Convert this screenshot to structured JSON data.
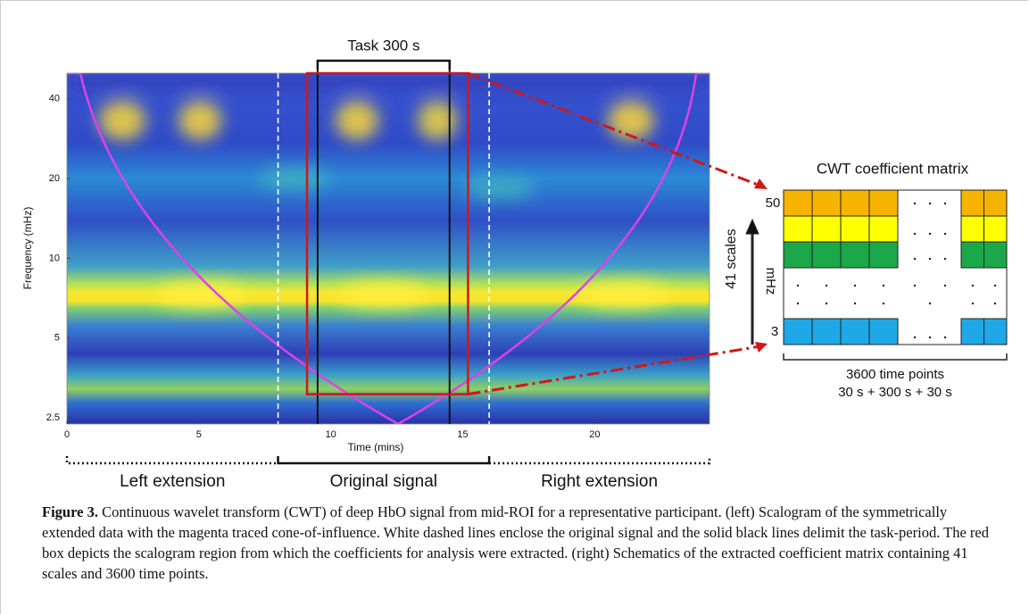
{
  "figure": {
    "scalogram": {
      "x_label": "Time (mins)",
      "y_label": "Frequency (mHz)",
      "xlim": [
        0,
        24.35
      ],
      "ylim": [
        2.37,
        50
      ],
      "y_scale": "log",
      "xticks": [
        0,
        5,
        10,
        15,
        20
      ],
      "yticks": [
        2.5,
        5,
        10,
        20,
        40
      ],
      "original_signal": [
        8,
        16
      ],
      "task": [
        9.5,
        14.5
      ],
      "task_label": "Task 300 s",
      "extracted_region": {
        "x": [
          9.1,
          15.2
        ],
        "y": [
          3.07,
          50
        ]
      },
      "segments": [
        "Left extension",
        "Original signal",
        "Right extension"
      ]
    },
    "matrix": {
      "title": "CWT coefficient matrix",
      "top_label": 50,
      "bottom_label": 3,
      "axis_label": "41 scales",
      "unit": "mHz",
      "bottom_line1": "3600 time points",
      "bottom_line2": "30 s + 300 s + 30 s"
    },
    "caption": {
      "label": "Figure 3.",
      "text": "Continuous wavelet transform (CWT) of deep HbO signal from mid-ROI for a representative participant. (left) Scalogram of the symmetrically extended data with the magenta traced cone-of-influence. White dashed lines enclose the original signal and the solid black lines delimit the task-period. The red box depicts the scalogram region from which the coefficients for analysis were extracted. (right) Schematics of the extracted coefficient matrix containing 41 scales and 3600 time points."
    }
  }
}
